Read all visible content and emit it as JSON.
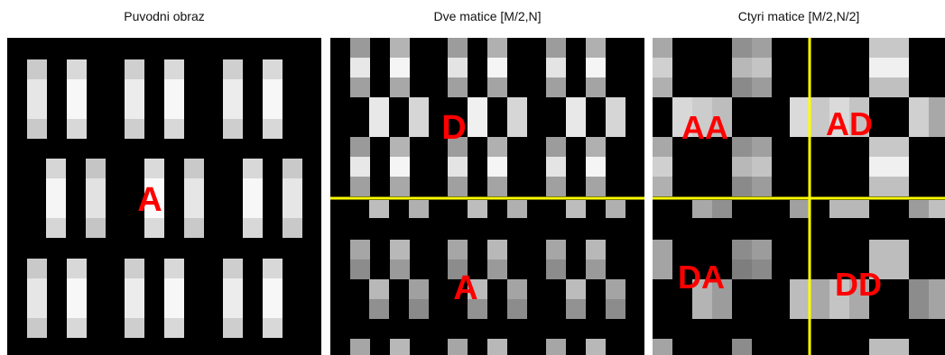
{
  "panels": [
    {
      "id": "original",
      "title": "Puvodni obraz",
      "labels": [
        {
          "text": "A"
        }
      ]
    },
    {
      "id": "two_matrices",
      "title": "Dve matice [M/2,N]",
      "labels": [
        {
          "text": "D"
        },
        {
          "text": "A"
        }
      ]
    },
    {
      "id": "four_matrices",
      "title": "Ctyri matice [M/2,N/2]",
      "labels": [
        {
          "text": "AA"
        },
        {
          "text": "AD"
        },
        {
          "text": "DA"
        },
        {
          "text": "DD"
        }
      ]
    }
  ],
  "colors": {
    "background": "#000000",
    "divider": "#ffff00",
    "label": "#ff0000"
  }
}
